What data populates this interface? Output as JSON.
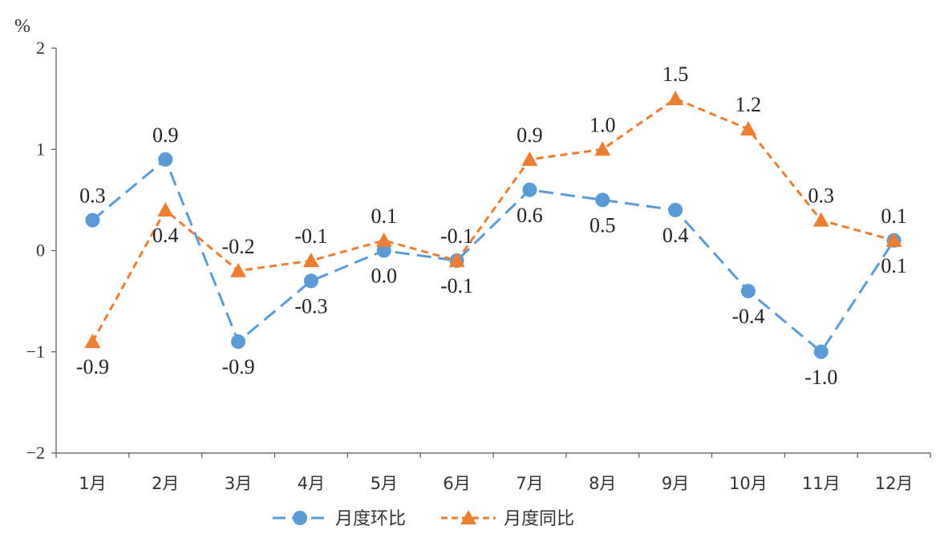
{
  "chart_data": {
    "type": "line",
    "unit": "%",
    "categories": [
      "1月",
      "2月",
      "3月",
      "4月",
      "5月",
      "6月",
      "7月",
      "8月",
      "9月",
      "10月",
      "11月",
      "12月"
    ],
    "ylim": [
      -2,
      2
    ],
    "yticks": [
      -2,
      -1,
      0,
      1,
      2
    ],
    "ytick_labels": [
      "−2",
      "−1",
      "0",
      "1",
      "2"
    ],
    "grid": false,
    "legend_position": "bottom",
    "series": [
      {
        "name": "月度环比",
        "color": "#5B9BD5",
        "marker": "circle",
        "line_style": "dashed",
        "values": [
          0.3,
          0.9,
          -0.9,
          -0.3,
          0.0,
          -0.1,
          0.6,
          0.5,
          0.4,
          -0.4,
          -1.0,
          0.1
        ],
        "labels": [
          "0.3",
          "0.9",
          "-0.9",
          "-0.3",
          "0.0",
          "-0.1",
          "0.6",
          "0.5",
          "0.4",
          "-0.4",
          "-1.0",
          "0.1"
        ],
        "label_sides": [
          "above",
          "above",
          "below",
          "below",
          "below",
          "below",
          "below",
          "below",
          "below",
          "below",
          "below",
          "below"
        ]
      },
      {
        "name": "月度同比",
        "color": "#ED7D31",
        "marker": "triangle",
        "line_style": "dashed",
        "values": [
          -0.9,
          0.4,
          -0.2,
          -0.1,
          0.1,
          -0.1,
          0.9,
          1.0,
          1.5,
          1.2,
          0.3,
          0.1
        ],
        "labels": [
          "-0.9",
          "0.4",
          "-0.2",
          "-0.1",
          "0.1",
          "-0.1",
          "0.9",
          "1.0",
          "1.5",
          "1.2",
          "0.3",
          "0.1"
        ],
        "label_sides": [
          "below",
          "below",
          "above",
          "above",
          "above",
          "above",
          "above",
          "above",
          "above",
          "above",
          "above",
          "above"
        ]
      }
    ]
  }
}
